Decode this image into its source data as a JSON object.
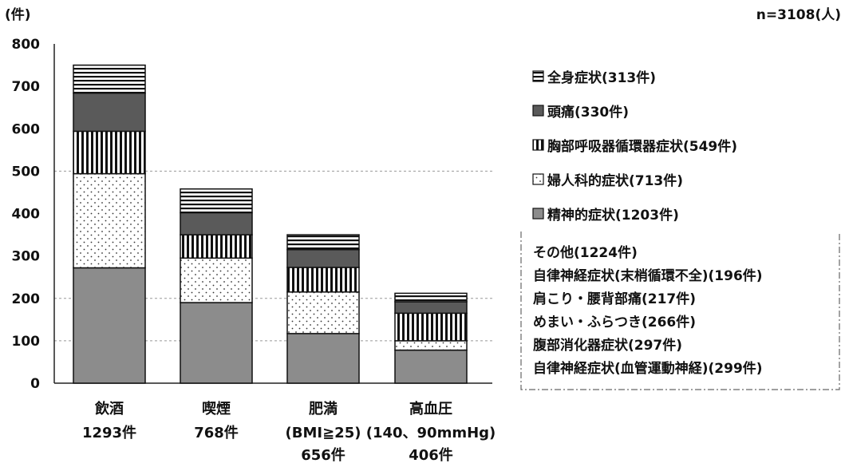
{
  "chart_data": {
    "type": "bar",
    "stacked": true,
    "ylabel": "(件)",
    "note": "n=3108(人)",
    "ylim": [
      0,
      800
    ],
    "yticks": [
      0,
      100,
      200,
      300,
      400,
      500,
      600,
      700,
      800
    ],
    "categories": [
      {
        "name": "飲酒",
        "line2": "1293件",
        "line3": ""
      },
      {
        "name": "喫煙",
        "line2": "768件",
        "line3": ""
      },
      {
        "name": "肥満",
        "line2": "(BMI≧25)",
        "line3": "656件"
      },
      {
        "name": "高血圧",
        "line2": "(140、90mmHg)",
        "line3": "406件"
      }
    ],
    "series": [
      {
        "name": "精神的症状(1203件)",
        "pattern": "solid-gray",
        "values": [
          272,
          190,
          117,
          78
        ]
      },
      {
        "name": "婦人科的症状(713件)",
        "pattern": "dots",
        "values": [
          222,
          105,
          98,
          22
        ]
      },
      {
        "name": "胸部呼吸器循環器症状(549件)",
        "pattern": "vertical-stripes",
        "values": [
          100,
          55,
          58,
          65
        ]
      },
      {
        "name": "頭痛(330件)",
        "pattern": "dark-gray",
        "values": [
          90,
          52,
          42,
          27
        ]
      },
      {
        "name": "全身症状(313件)",
        "pattern": "horizontal-stripes",
        "values": [
          66,
          56,
          35,
          20
        ]
      }
    ],
    "other_box": {
      "lines": [
        "その他(1224件)",
        "自律神経症状(末梢循環不全)(196件)",
        "肩こり・腰背部痛(217件)",
        "めまい・ふらつき(266件)",
        "腹部消化器症状(297件)",
        "自律神経症状(血管運動神経)(299件)"
      ]
    },
    "grid": "dashed at 100, 200, 500",
    "legend_position": "right"
  }
}
